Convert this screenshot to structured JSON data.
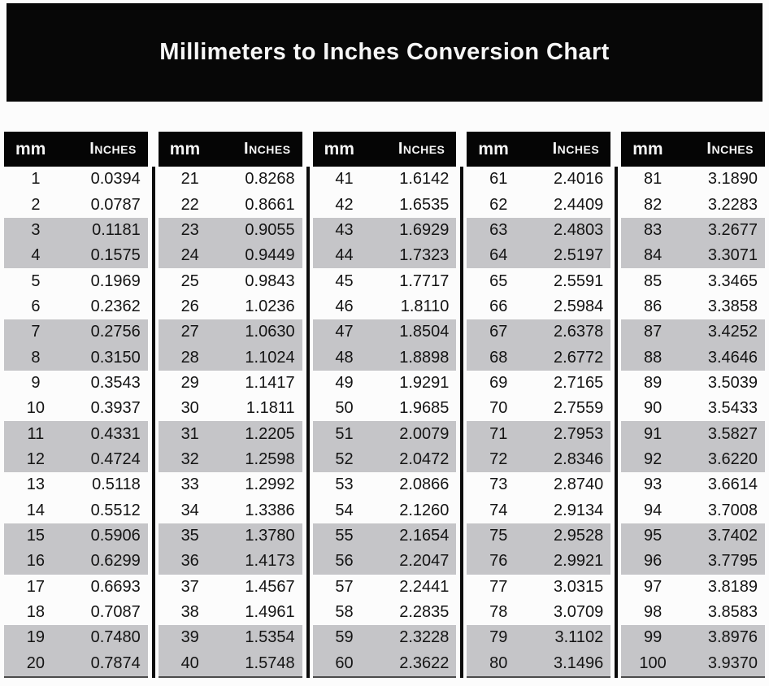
{
  "title": "Millimeters to Inches Conversion Chart",
  "colors": {
    "banner_bg": "#070707",
    "header_bg": "#050505",
    "row_alt_bg": "#c5c5c8",
    "divider": "#0c0c0c",
    "text": "#141414"
  },
  "table": {
    "header": {
      "mm_label": "mm",
      "inches_label": "Inches"
    },
    "blocks": [
      {
        "rows": [
          {
            "mm": "1",
            "inches": "0.0394"
          },
          {
            "mm": "2",
            "inches": "0.0787"
          },
          {
            "mm": "3",
            "inches": "0.1181"
          },
          {
            "mm": "4",
            "inches": "0.1575"
          },
          {
            "mm": "5",
            "inches": "0.1969"
          },
          {
            "mm": "6",
            "inches": "0.2362"
          },
          {
            "mm": "7",
            "inches": "0.2756"
          },
          {
            "mm": "8",
            "inches": "0.3150"
          },
          {
            "mm": "9",
            "inches": "0.3543"
          },
          {
            "mm": "10",
            "inches": "0.3937"
          },
          {
            "mm": "11",
            "inches": "0.4331"
          },
          {
            "mm": "12",
            "inches": "0.4724"
          },
          {
            "mm": "13",
            "inches": "0.5118"
          },
          {
            "mm": "14",
            "inches": "0.5512"
          },
          {
            "mm": "15",
            "inches": "0.5906"
          },
          {
            "mm": "16",
            "inches": "0.6299"
          },
          {
            "mm": "17",
            "inches": "0.6693"
          },
          {
            "mm": "18",
            "inches": "0.7087"
          },
          {
            "mm": "19",
            "inches": "0.7480"
          },
          {
            "mm": "20",
            "inches": "0.7874"
          }
        ]
      },
      {
        "rows": [
          {
            "mm": "21",
            "inches": "0.8268"
          },
          {
            "mm": "22",
            "inches": "0.8661"
          },
          {
            "mm": "23",
            "inches": "0.9055"
          },
          {
            "mm": "24",
            "inches": "0.9449"
          },
          {
            "mm": "25",
            "inches": "0.9843"
          },
          {
            "mm": "26",
            "inches": "1.0236"
          },
          {
            "mm": "27",
            "inches": "1.0630"
          },
          {
            "mm": "28",
            "inches": "1.1024"
          },
          {
            "mm": "29",
            "inches": "1.1417"
          },
          {
            "mm": "30",
            "inches": "1.1811"
          },
          {
            "mm": "31",
            "inches": "1.2205"
          },
          {
            "mm": "32",
            "inches": "1.2598"
          },
          {
            "mm": "33",
            "inches": "1.2992"
          },
          {
            "mm": "34",
            "inches": "1.3386"
          },
          {
            "mm": "35",
            "inches": "1.3780"
          },
          {
            "mm": "36",
            "inches": "1.4173"
          },
          {
            "mm": "37",
            "inches": "1.4567"
          },
          {
            "mm": "38",
            "inches": "1.4961"
          },
          {
            "mm": "39",
            "inches": "1.5354"
          },
          {
            "mm": "40",
            "inches": "1.5748"
          }
        ]
      },
      {
        "rows": [
          {
            "mm": "41",
            "inches": "1.6142"
          },
          {
            "mm": "42",
            "inches": "1.6535"
          },
          {
            "mm": "43",
            "inches": "1.6929"
          },
          {
            "mm": "44",
            "inches": "1.7323"
          },
          {
            "mm": "45",
            "inches": "1.7717"
          },
          {
            "mm": "46",
            "inches": "1.8110"
          },
          {
            "mm": "47",
            "inches": "1.8504"
          },
          {
            "mm": "48",
            "inches": "1.8898"
          },
          {
            "mm": "49",
            "inches": "1.9291"
          },
          {
            "mm": "50",
            "inches": "1.9685"
          },
          {
            "mm": "51",
            "inches": "2.0079"
          },
          {
            "mm": "52",
            "inches": "2.0472"
          },
          {
            "mm": "53",
            "inches": "2.0866"
          },
          {
            "mm": "54",
            "inches": "2.1260"
          },
          {
            "mm": "55",
            "inches": "2.1654"
          },
          {
            "mm": "56",
            "inches": "2.2047"
          },
          {
            "mm": "57",
            "inches": "2.2441"
          },
          {
            "mm": "58",
            "inches": "2.2835"
          },
          {
            "mm": "59",
            "inches": "2.3228"
          },
          {
            "mm": "60",
            "inches": "2.3622"
          }
        ]
      },
      {
        "rows": [
          {
            "mm": "61",
            "inches": "2.4016"
          },
          {
            "mm": "62",
            "inches": "2.4409"
          },
          {
            "mm": "63",
            "inches": "2.4803"
          },
          {
            "mm": "64",
            "inches": "2.5197"
          },
          {
            "mm": "65",
            "inches": "2.5591"
          },
          {
            "mm": "66",
            "inches": "2.5984"
          },
          {
            "mm": "67",
            "inches": "2.6378"
          },
          {
            "mm": "68",
            "inches": "2.6772"
          },
          {
            "mm": "69",
            "inches": "2.7165"
          },
          {
            "mm": "70",
            "inches": "2.7559"
          },
          {
            "mm": "71",
            "inches": "2.7953"
          },
          {
            "mm": "72",
            "inches": "2.8346"
          },
          {
            "mm": "73",
            "inches": "2.8740"
          },
          {
            "mm": "74",
            "inches": "2.9134"
          },
          {
            "mm": "75",
            "inches": "2.9528"
          },
          {
            "mm": "76",
            "inches": "2.9921"
          },
          {
            "mm": "77",
            "inches": "3.0315"
          },
          {
            "mm": "78",
            "inches": "3.0709"
          },
          {
            "mm": "79",
            "inches": "3.1102"
          },
          {
            "mm": "80",
            "inches": "3.1496"
          }
        ]
      },
      {
        "rows": [
          {
            "mm": "81",
            "inches": "3.1890"
          },
          {
            "mm": "82",
            "inches": "3.2283"
          },
          {
            "mm": "83",
            "inches": "3.2677"
          },
          {
            "mm": "84",
            "inches": "3.3071"
          },
          {
            "mm": "85",
            "inches": "3.3465"
          },
          {
            "mm": "86",
            "inches": "3.3858"
          },
          {
            "mm": "87",
            "inches": "3.4252"
          },
          {
            "mm": "88",
            "inches": "3.4646"
          },
          {
            "mm": "89",
            "inches": "3.5039"
          },
          {
            "mm": "90",
            "inches": "3.5433"
          },
          {
            "mm": "91",
            "inches": "3.5827"
          },
          {
            "mm": "92",
            "inches": "3.6220"
          },
          {
            "mm": "93",
            "inches": "3.6614"
          },
          {
            "mm": "94",
            "inches": "3.7008"
          },
          {
            "mm": "95",
            "inches": "3.7402"
          },
          {
            "mm": "96",
            "inches": "3.7795"
          },
          {
            "mm": "97",
            "inches": "3.8189"
          },
          {
            "mm": "98",
            "inches": "3.8583"
          },
          {
            "mm": "99",
            "inches": "3.8976"
          },
          {
            "mm": "100",
            "inches": "3.9370"
          }
        ]
      }
    ]
  }
}
